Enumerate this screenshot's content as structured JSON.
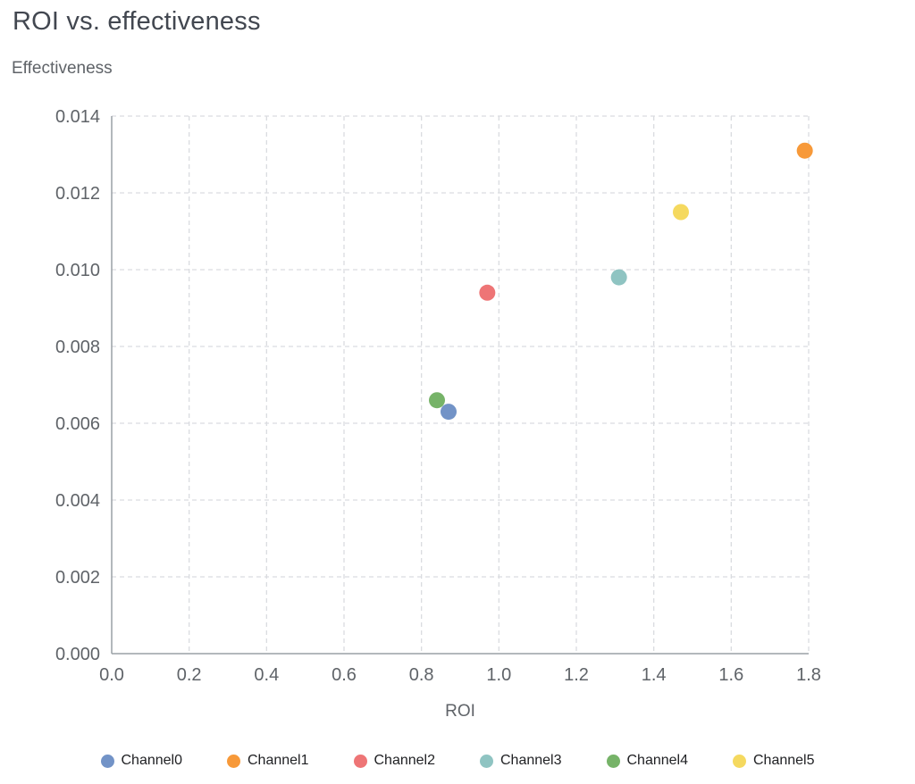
{
  "title": "ROI vs. effectiveness",
  "y_axis_title": "Effectiveness",
  "x_axis_title": "ROI",
  "colors": {
    "title": "#424750",
    "axis_label": "#5f6368",
    "tick_label": "#5f6368",
    "grid": "#dadce0",
    "axis_line": "#9aa0a6",
    "legend_label": "#202124"
  },
  "chart_data": {
    "type": "scatter",
    "title": "ROI vs. effectiveness",
    "xlabel": "ROI",
    "ylabel": "Effectiveness",
    "xlim": [
      0,
      1.8
    ],
    "ylim": [
      0,
      0.014
    ],
    "x_ticks": [
      0.0,
      0.2,
      0.4,
      0.6,
      0.8,
      1.0,
      1.2,
      1.4,
      1.6,
      1.8
    ],
    "y_ticks": [
      0.0,
      0.002,
      0.004,
      0.006,
      0.008,
      0.01,
      0.012,
      0.014
    ],
    "grid": "dashed",
    "legend_position": "bottom",
    "series": [
      {
        "name": "Channel0",
        "color": "#7293c7",
        "points": [
          {
            "x": 0.87,
            "y": 0.0063
          }
        ]
      },
      {
        "name": "Channel1",
        "color": "#f79939",
        "points": [
          {
            "x": 1.79,
            "y": 0.0131
          }
        ]
      },
      {
        "name": "Channel2",
        "color": "#ee7576",
        "points": [
          {
            "x": 0.97,
            "y": 0.0094
          }
        ]
      },
      {
        "name": "Channel3",
        "color": "#8fc4c2",
        "points": [
          {
            "x": 1.31,
            "y": 0.0098
          }
        ]
      },
      {
        "name": "Channel4",
        "color": "#76b368",
        "points": [
          {
            "x": 0.84,
            "y": 0.0066
          }
        ]
      },
      {
        "name": "Channel5",
        "color": "#f5d95f",
        "points": [
          {
            "x": 1.47,
            "y": 0.0115
          }
        ]
      }
    ]
  }
}
